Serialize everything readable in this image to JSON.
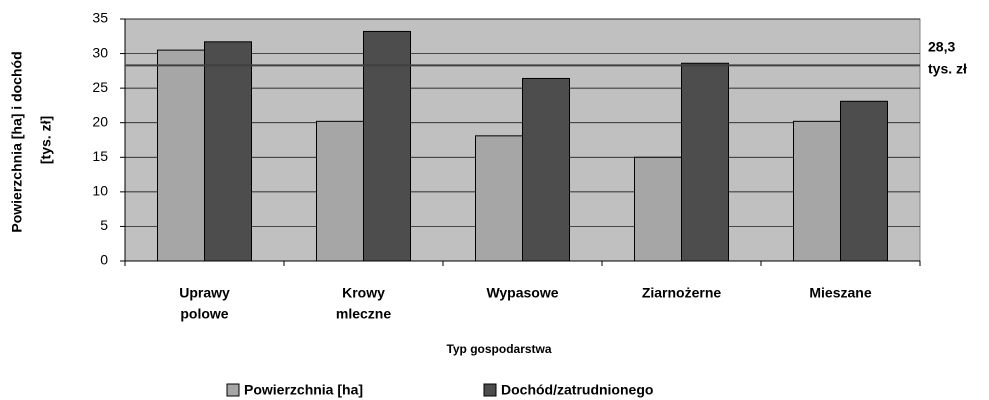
{
  "chart_data": {
    "type": "bar",
    "categories": [
      [
        "Uprawy",
        "polowe"
      ],
      [
        "Krowy",
        "mleczne"
      ],
      [
        "Wypasowe"
      ],
      [
        "Ziarnożerne"
      ],
      [
        "Mieszane"
      ]
    ],
    "series": [
      {
        "name": "Powierzchnia [ha]",
        "color": "#a6a6a6",
        "values": [
          30.5,
          20.2,
          18.1,
          15.0,
          20.2
        ]
      },
      {
        "name": "Dochód/zatrudnionego",
        "color": "#4d4d4d",
        "values": [
          31.7,
          33.2,
          26.4,
          28.6,
          23.1
        ]
      }
    ],
    "ylabel": [
      "Powierzchnia [ha] i dochód",
      "[tys. zł]"
    ],
    "xlabel": "Typ gospodarstwa",
    "reference": {
      "value": 28.3,
      "lines": [
        "28,3",
        "tys. zł"
      ]
    },
    "ylim": [
      0,
      35
    ],
    "yticks": [
      0,
      5,
      10,
      15,
      20,
      25,
      30,
      35
    ],
    "grid": true,
    "legend": "bottom"
  }
}
